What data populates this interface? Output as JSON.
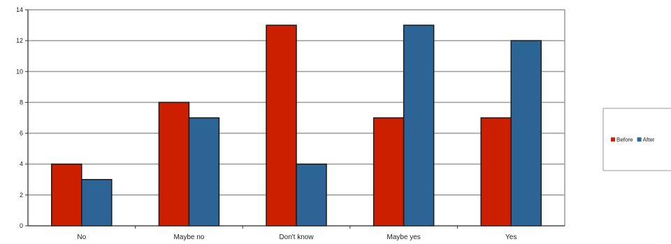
{
  "chart_data": {
    "type": "bar",
    "categories": [
      "No",
      "Maybe no",
      "Don't know",
      "Maybe yes",
      "Yes"
    ],
    "series": [
      {
        "name": "Before",
        "values": [
          4,
          8,
          13,
          7,
          7
        ],
        "color": "#cc1f00"
      },
      {
        "name": "After",
        "values": [
          3,
          7,
          4,
          13,
          12
        ],
        "color": "#2c6496"
      }
    ],
    "yticks": [
      0,
      2,
      4,
      6,
      8,
      10,
      12,
      14
    ],
    "ylim": [
      0,
      14
    ],
    "grid": true,
    "legend_position": "right",
    "colors": {
      "grid": "#a0a0a0",
      "bar_outline": "#1a1a1a",
      "plot_border": "#808080"
    }
  }
}
